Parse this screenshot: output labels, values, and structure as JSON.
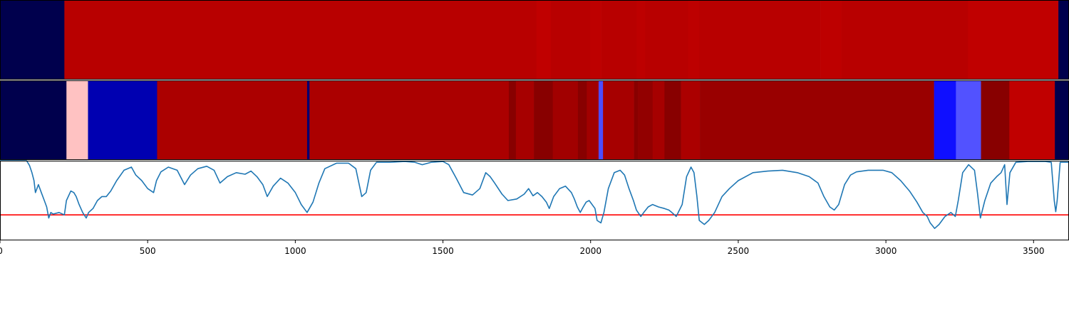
{
  "chart_data": [
    {
      "type": "heatmap",
      "colormap": "seismic",
      "value_range": [
        -1,
        1
      ],
      "segments": [
        {
          "start": 0,
          "end": 218,
          "value": -1.0
        },
        {
          "start": 218,
          "end": 1817,
          "value": 0.78
        },
        {
          "start": 1817,
          "end": 1865,
          "value": 0.75
        },
        {
          "start": 1865,
          "end": 1998,
          "value": 0.78
        },
        {
          "start": 1998,
          "end": 2036,
          "value": 0.76
        },
        {
          "start": 2036,
          "end": 2156,
          "value": 0.78
        },
        {
          "start": 2156,
          "end": 2185,
          "value": 0.76
        },
        {
          "start": 2185,
          "end": 2330,
          "value": 0.78
        },
        {
          "start": 2330,
          "end": 2368,
          "value": 0.76
        },
        {
          "start": 2368,
          "end": 2778,
          "value": 0.78
        },
        {
          "start": 2778,
          "end": 2849,
          "value": 0.76
        },
        {
          "start": 2849,
          "end": 3278,
          "value": 0.78
        },
        {
          "start": 3278,
          "end": 3584,
          "value": 0.75
        },
        {
          "start": 3584,
          "end": 3620,
          "value": -1.0
        }
      ]
    },
    {
      "type": "heatmap",
      "colormap": "seismic",
      "value_range": [
        -1,
        1
      ],
      "segments": [
        {
          "start": 0,
          "end": 225,
          "value": -1.0
        },
        {
          "start": 225,
          "end": 298,
          "value": 0.12
        },
        {
          "start": 298,
          "end": 532,
          "value": -0.72
        },
        {
          "start": 532,
          "end": 1040,
          "value": 0.83
        },
        {
          "start": 1040,
          "end": 1048,
          "value": -0.9
        },
        {
          "start": 1048,
          "end": 1723,
          "value": 0.83
        },
        {
          "start": 1723,
          "end": 1747,
          "value": 0.97
        },
        {
          "start": 1747,
          "end": 1808,
          "value": 0.85
        },
        {
          "start": 1808,
          "end": 1872,
          "value": 0.97
        },
        {
          "start": 1872,
          "end": 1957,
          "value": 0.87
        },
        {
          "start": 1957,
          "end": 1987,
          "value": 0.97
        },
        {
          "start": 1987,
          "end": 2027,
          "value": 0.87
        },
        {
          "start": 2027,
          "end": 2042,
          "value": -0.35
        },
        {
          "start": 2042,
          "end": 2147,
          "value": 0.85
        },
        {
          "start": 2147,
          "end": 2160,
          "value": 0.97
        },
        {
          "start": 2160,
          "end": 2210,
          "value": 0.93
        },
        {
          "start": 2210,
          "end": 2250,
          "value": 0.85
        },
        {
          "start": 2250,
          "end": 2306,
          "value": 0.97
        },
        {
          "start": 2306,
          "end": 2370,
          "value": 0.83
        },
        {
          "start": 2370,
          "end": 3163,
          "value": 0.9
        },
        {
          "start": 3163,
          "end": 3237,
          "value": -0.47
        },
        {
          "start": 3237,
          "end": 3322,
          "value": -0.34
        },
        {
          "start": 3322,
          "end": 3418,
          "value": 0.97
        },
        {
          "start": 3418,
          "end": 3572,
          "value": 0.75
        },
        {
          "start": 3572,
          "end": 3620,
          "value": -1.0
        }
      ]
    },
    {
      "type": "line",
      "ylim": [
        0,
        1
      ],
      "threshold": 0.32,
      "threshold_color": "#ff0000",
      "line_color": "#1f77b4",
      "points": [
        [
          0,
          1.0
        ],
        [
          90,
          1.0
        ],
        [
          100,
          0.94
        ],
        [
          108,
          0.85
        ],
        [
          115,
          0.75
        ],
        [
          120,
          0.6
        ],
        [
          130,
          0.7
        ],
        [
          140,
          0.6
        ],
        [
          150,
          0.5
        ],
        [
          158,
          0.42
        ],
        [
          165,
          0.28
        ],
        [
          172,
          0.35
        ],
        [
          180,
          0.33
        ],
        [
          200,
          0.35
        ],
        [
          218,
          0.32
        ],
        [
          225,
          0.5
        ],
        [
          240,
          0.62
        ],
        [
          250,
          0.6
        ],
        [
          258,
          0.55
        ],
        [
          268,
          0.45
        ],
        [
          280,
          0.35
        ],
        [
          292,
          0.28
        ],
        [
          300,
          0.35
        ],
        [
          315,
          0.4
        ],
        [
          330,
          0.5
        ],
        [
          345,
          0.55
        ],
        [
          360,
          0.55
        ],
        [
          375,
          0.62
        ],
        [
          395,
          0.75
        ],
        [
          420,
          0.88
        ],
        [
          445,
          0.92
        ],
        [
          460,
          0.82
        ],
        [
          480,
          0.75
        ],
        [
          500,
          0.65
        ],
        [
          520,
          0.6
        ],
        [
          530,
          0.75
        ],
        [
          545,
          0.86
        ],
        [
          570,
          0.92
        ],
        [
          600,
          0.88
        ],
        [
          625,
          0.7
        ],
        [
          645,
          0.82
        ],
        [
          670,
          0.9
        ],
        [
          700,
          0.93
        ],
        [
          725,
          0.88
        ],
        [
          745,
          0.72
        ],
        [
          770,
          0.8
        ],
        [
          800,
          0.85
        ],
        [
          830,
          0.83
        ],
        [
          850,
          0.87
        ],
        [
          870,
          0.8
        ],
        [
          890,
          0.7
        ],
        [
          905,
          0.55
        ],
        [
          925,
          0.68
        ],
        [
          950,
          0.78
        ],
        [
          975,
          0.72
        ],
        [
          1000,
          0.6
        ],
        [
          1020,
          0.45
        ],
        [
          1040,
          0.35
        ],
        [
          1060,
          0.48
        ],
        [
          1080,
          0.72
        ],
        [
          1100,
          0.9
        ],
        [
          1140,
          0.97
        ],
        [
          1180,
          0.97
        ],
        [
          1205,
          0.9
        ],
        [
          1225,
          0.55
        ],
        [
          1240,
          0.6
        ],
        [
          1255,
          0.88
        ],
        [
          1275,
          0.98
        ],
        [
          1320,
          0.98
        ],
        [
          1370,
          0.99
        ],
        [
          1405,
          0.98
        ],
        [
          1430,
          0.95
        ],
        [
          1460,
          0.98
        ],
        [
          1500,
          0.99
        ],
        [
          1520,
          0.95
        ],
        [
          1545,
          0.78
        ],
        [
          1570,
          0.6
        ],
        [
          1600,
          0.57
        ],
        [
          1625,
          0.65
        ],
        [
          1645,
          0.85
        ],
        [
          1660,
          0.8
        ],
        [
          1675,
          0.72
        ],
        [
          1700,
          0.58
        ],
        [
          1720,
          0.5
        ],
        [
          1750,
          0.52
        ],
        [
          1775,
          0.58
        ],
        [
          1790,
          0.65
        ],
        [
          1805,
          0.56
        ],
        [
          1820,
          0.6
        ],
        [
          1835,
          0.55
        ],
        [
          1850,
          0.48
        ],
        [
          1860,
          0.4
        ],
        [
          1875,
          0.55
        ],
        [
          1895,
          0.65
        ],
        [
          1915,
          0.68
        ],
        [
          1935,
          0.6
        ],
        [
          1945,
          0.52
        ],
        [
          1955,
          0.42
        ],
        [
          1965,
          0.35
        ],
        [
          1975,
          0.42
        ],
        [
          1985,
          0.48
        ],
        [
          1995,
          0.5
        ],
        [
          2015,
          0.4
        ],
        [
          2022,
          0.25
        ],
        [
          2035,
          0.22
        ],
        [
          2045,
          0.35
        ],
        [
          2060,
          0.65
        ],
        [
          2080,
          0.85
        ],
        [
          2100,
          0.88
        ],
        [
          2115,
          0.82
        ],
        [
          2130,
          0.65
        ],
        [
          2145,
          0.5
        ],
        [
          2155,
          0.38
        ],
        [
          2170,
          0.3
        ],
        [
          2180,
          0.35
        ],
        [
          2195,
          0.42
        ],
        [
          2210,
          0.45
        ],
        [
          2230,
          0.42
        ],
        [
          2250,
          0.4
        ],
        [
          2265,
          0.38
        ],
        [
          2275,
          0.35
        ],
        [
          2290,
          0.3
        ],
        [
          2310,
          0.45
        ],
        [
          2325,
          0.8
        ],
        [
          2340,
          0.92
        ],
        [
          2350,
          0.85
        ],
        [
          2360,
          0.55
        ],
        [
          2368,
          0.25
        ],
        [
          2385,
          0.2
        ],
        [
          2400,
          0.25
        ],
        [
          2420,
          0.35
        ],
        [
          2445,
          0.55
        ],
        [
          2470,
          0.65
        ],
        [
          2500,
          0.75
        ],
        [
          2550,
          0.85
        ],
        [
          2600,
          0.87
        ],
        [
          2650,
          0.88
        ],
        [
          2700,
          0.85
        ],
        [
          2740,
          0.8
        ],
        [
          2770,
          0.72
        ],
        [
          2790,
          0.55
        ],
        [
          2810,
          0.42
        ],
        [
          2825,
          0.38
        ],
        [
          2840,
          0.45
        ],
        [
          2860,
          0.7
        ],
        [
          2880,
          0.82
        ],
        [
          2900,
          0.86
        ],
        [
          2940,
          0.88
        ],
        [
          2990,
          0.88
        ],
        [
          3020,
          0.85
        ],
        [
          3050,
          0.75
        ],
        [
          3080,
          0.62
        ],
        [
          3105,
          0.48
        ],
        [
          3125,
          0.35
        ],
        [
          3140,
          0.3
        ],
        [
          3150,
          0.22
        ],
        [
          3165,
          0.15
        ],
        [
          3180,
          0.2
        ],
        [
          3200,
          0.3
        ],
        [
          3220,
          0.35
        ],
        [
          3235,
          0.3
        ],
        [
          3245,
          0.5
        ],
        [
          3260,
          0.85
        ],
        [
          3280,
          0.95
        ],
        [
          3300,
          0.88
        ],
        [
          3310,
          0.6
        ],
        [
          3320,
          0.28
        ],
        [
          3335,
          0.5
        ],
        [
          3355,
          0.72
        ],
        [
          3375,
          0.8
        ],
        [
          3390,
          0.85
        ],
        [
          3402,
          0.95
        ],
        [
          3410,
          0.45
        ],
        [
          3420,
          0.85
        ],
        [
          3440,
          0.98
        ],
        [
          3480,
          0.99
        ],
        [
          3540,
          0.99
        ],
        [
          3560,
          0.98
        ],
        [
          3570,
          0.5
        ],
        [
          3575,
          0.36
        ],
        [
          3580,
          0.5
        ],
        [
          3590,
          0.98
        ],
        [
          3620,
          0.98
        ]
      ],
      "xlim": [
        0,
        3620
      ],
      "xticks": [
        0,
        500,
        1000,
        1500,
        2000,
        2500,
        3000,
        3500
      ]
    }
  ]
}
